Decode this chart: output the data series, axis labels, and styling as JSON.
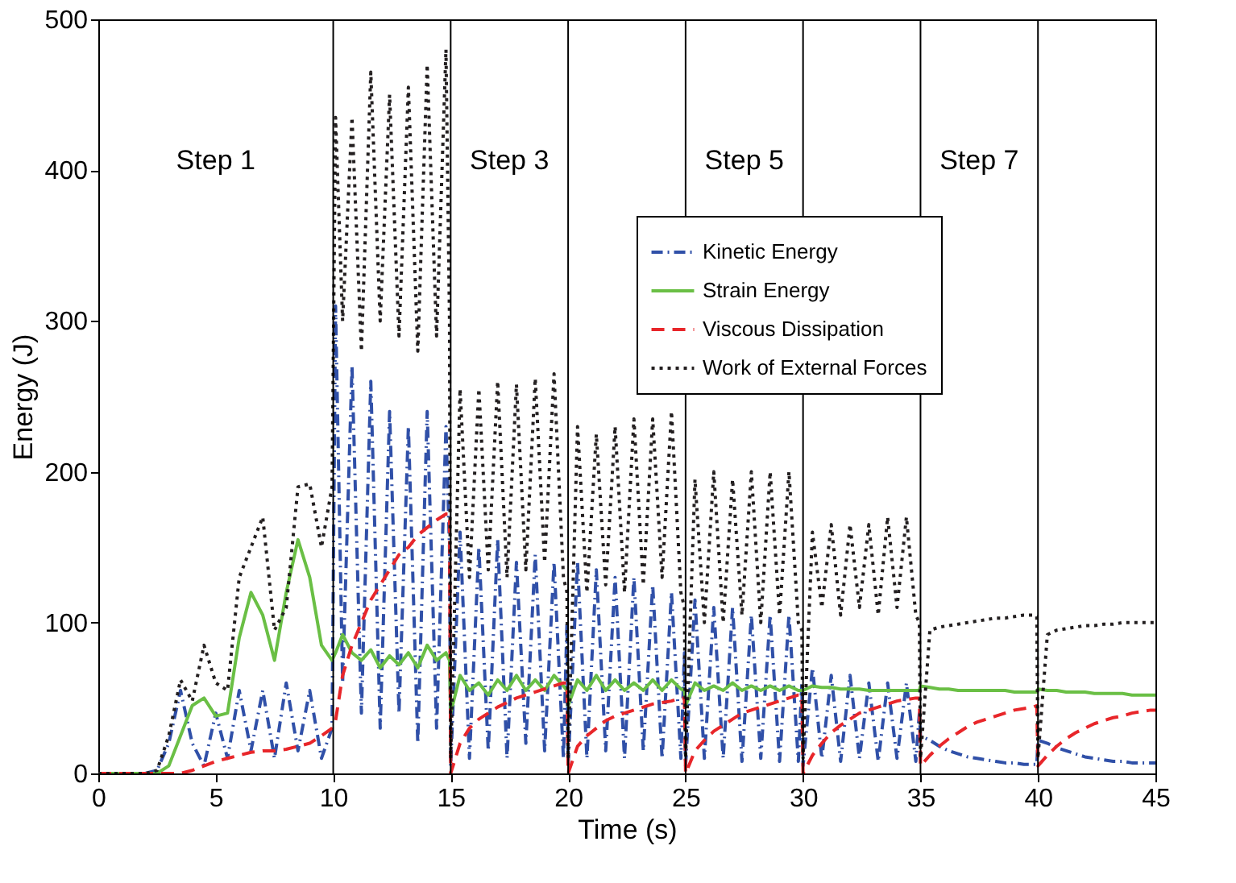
{
  "chart_data": {
    "type": "line",
    "xlabel": "Time (s)",
    "ylabel": "Energy (J)",
    "x": [
      0,
      0.5,
      1,
      1.5,
      2,
      2.5,
      3,
      3.5,
      4,
      4.5,
      5,
      5.5,
      6,
      6.5,
      7,
      7.5,
      8,
      8.5,
      9,
      9.5,
      9.95,
      10.1,
      10.4,
      10.8,
      11.2,
      11.6,
      12,
      12.4,
      12.8,
      13.2,
      13.6,
      14,
      14.4,
      14.8,
      14.95,
      15,
      15.4,
      15.8,
      16.2,
      16.6,
      17,
      17.4,
      17.8,
      18.2,
      18.6,
      19,
      19.4,
      19.8,
      19.95,
      20,
      20.4,
      20.8,
      21.2,
      21.6,
      22,
      22.4,
      22.8,
      23.2,
      23.6,
      24,
      24.4,
      24.8,
      24.95,
      25,
      25.4,
      25.8,
      26.2,
      26.6,
      27,
      27.4,
      27.8,
      28.2,
      28.6,
      29,
      29.4,
      29.8,
      29.95,
      30,
      30.4,
      30.8,
      31.2,
      31.6,
      32,
      32.4,
      32.8,
      33.2,
      33.6,
      34,
      34.4,
      34.8,
      34.95,
      35,
      35.4,
      35.8,
      36.2,
      36.6,
      37,
      37.4,
      37.8,
      38.2,
      38.6,
      39,
      39.4,
      39.8,
      39.95,
      40,
      40.4,
      40.8,
      41.2,
      41.6,
      42,
      42.4,
      42.8,
      43.2,
      43.6,
      44,
      44.4,
      44.8,
      45
    ],
    "series": [
      {
        "name": "Kinetic Energy",
        "color": "#3050a8",
        "line_style": "dashdot",
        "values": [
          null,
          null,
          0,
          0,
          0,
          2,
          20,
          55,
          20,
          5,
          40,
          10,
          55,
          15,
          55,
          10,
          60,
          15,
          55,
          10,
          30,
          310,
          60,
          270,
          40,
          260,
          30,
          240,
          40,
          230,
          20,
          240,
          30,
          230,
          150,
          5,
          160,
          10,
          150,
          15,
          155,
          10,
          140,
          20,
          145,
          15,
          140,
          10,
          100,
          5,
          140,
          10,
          135,
          15,
          130,
          10,
          130,
          15,
          125,
          10,
          120,
          10,
          80,
          5,
          115,
          10,
          110,
          10,
          110,
          8,
          105,
          10,
          105,
          8,
          105,
          8,
          60,
          5,
          70,
          10,
          65,
          8,
          65,
          10,
          60,
          8,
          60,
          10,
          60,
          8,
          40,
          25,
          22,
          18,
          15,
          13,
          11,
          10,
          9,
          8,
          7,
          7,
          6,
          6,
          6,
          22,
          20,
          17,
          15,
          13,
          11,
          10,
          9,
          8,
          8,
          7,
          7,
          7,
          7
        ]
      },
      {
        "name": "Strain Energy",
        "color": "#6abf45",
        "line_style": "solid",
        "values": [
          0,
          0,
          0,
          0,
          0,
          0,
          5,
          25,
          45,
          50,
          38,
          40,
          90,
          120,
          105,
          75,
          120,
          155,
          130,
          85,
          75,
          80,
          92,
          80,
          75,
          82,
          70,
          78,
          72,
          80,
          70,
          85,
          75,
          80,
          75,
          40,
          65,
          55,
          60,
          52,
          62,
          55,
          65,
          55,
          62,
          55,
          65,
          58,
          55,
          45,
          62,
          55,
          65,
          55,
          62,
          55,
          60,
          55,
          62,
          55,
          62,
          56,
          55,
          45,
          60,
          55,
          58,
          55,
          60,
          55,
          58,
          55,
          58,
          55,
          58,
          55,
          55,
          55,
          58,
          57,
          57,
          56,
          56,
          56,
          55,
          55,
          55,
          55,
          55,
          55,
          55,
          58,
          57,
          56,
          56,
          55,
          55,
          55,
          55,
          55,
          55,
          54,
          54,
          54,
          54,
          56,
          55,
          55,
          54,
          54,
          54,
          53,
          53,
          53,
          53,
          52,
          52,
          52,
          52
        ]
      },
      {
        "name": "Viscous Dissipation",
        "color": "#e8262a",
        "line_style": "dashed",
        "values": [
          0,
          0,
          0,
          0,
          0,
          0,
          0,
          0,
          2,
          5,
          8,
          10,
          12,
          14,
          15,
          15,
          16,
          18,
          20,
          25,
          30,
          35,
          65,
          85,
          100,
          115,
          125,
          135,
          145,
          150,
          158,
          163,
          168,
          172,
          172,
          0,
          20,
          30,
          36,
          40,
          44,
          47,
          50,
          52,
          54,
          56,
          58,
          60,
          60,
          0,
          18,
          25,
          30,
          35,
          38,
          40,
          42,
          44,
          46,
          47,
          48,
          50,
          50,
          0,
          15,
          22,
          28,
          32,
          36,
          40,
          42,
          44,
          46,
          48,
          50,
          52,
          52,
          0,
          12,
          20,
          27,
          32,
          36,
          40,
          42,
          44,
          46,
          48,
          49,
          50,
          50,
          5,
          12,
          18,
          23,
          27,
          31,
          34,
          36,
          38,
          40,
          42,
          43,
          44,
          45,
          5,
          12,
          18,
          23,
          27,
          30,
          33,
          35,
          37,
          38,
          40,
          41,
          42,
          42
        ]
      },
      {
        "name": "Work of External Forces",
        "color": "#231f20",
        "line_style": "dotted",
        "values": [
          0,
          0,
          0,
          0,
          0,
          2,
          25,
          62,
          48,
          85,
          60,
          55,
          130,
          150,
          170,
          95,
          110,
          190,
          192,
          150,
          190,
          435,
          300,
          435,
          280,
          465,
          300,
          450,
          290,
          455,
          280,
          470,
          290,
          480,
          300,
          10,
          255,
          130,
          255,
          135,
          260,
          130,
          258,
          135,
          262,
          140,
          265,
          130,
          120,
          10,
          230,
          120,
          225,
          125,
          230,
          120,
          235,
          125,
          235,
          130,
          240,
          120,
          110,
          10,
          195,
          100,
          200,
          100,
          195,
          105,
          200,
          100,
          200,
          105,
          200,
          100,
          95,
          10,
          160,
          110,
          165,
          105,
          165,
          110,
          165,
          105,
          170,
          110,
          170,
          105,
          100,
          10,
          95,
          97,
          98,
          99,
          100,
          101,
          102,
          103,
          103,
          104,
          105,
          105,
          104,
          10,
          92,
          95,
          96,
          97,
          98,
          98,
          99,
          99,
          100,
          100,
          100,
          100,
          100
        ]
      }
    ],
    "xlim": [
      0,
      45
    ],
    "xticks": [
      0,
      5,
      10,
      15,
      20,
      25,
      30,
      35,
      40,
      45
    ],
    "ylim": [
      0,
      500
    ],
    "yticks": [
      0,
      100,
      200,
      300,
      400,
      500
    ],
    "grid": false,
    "legend": "top right",
    "ref_lines": [
      {
        "axis": "x",
        "value": 10,
        "color": "#000000"
      },
      {
        "axis": "x",
        "value": 15,
        "color": "#000000"
      },
      {
        "axis": "x",
        "value": 20,
        "color": "#000000"
      },
      {
        "axis": "x",
        "value": 25,
        "color": "#000000"
      },
      {
        "axis": "x",
        "value": 30,
        "color": "#000000"
      },
      {
        "axis": "x",
        "value": 35,
        "color": "#000000"
      },
      {
        "axis": "x",
        "value": 40,
        "color": "#000000"
      }
    ],
    "annotations": [
      "Step 1",
      "Step 3",
      "Step 5",
      "Step 7"
    ]
  }
}
